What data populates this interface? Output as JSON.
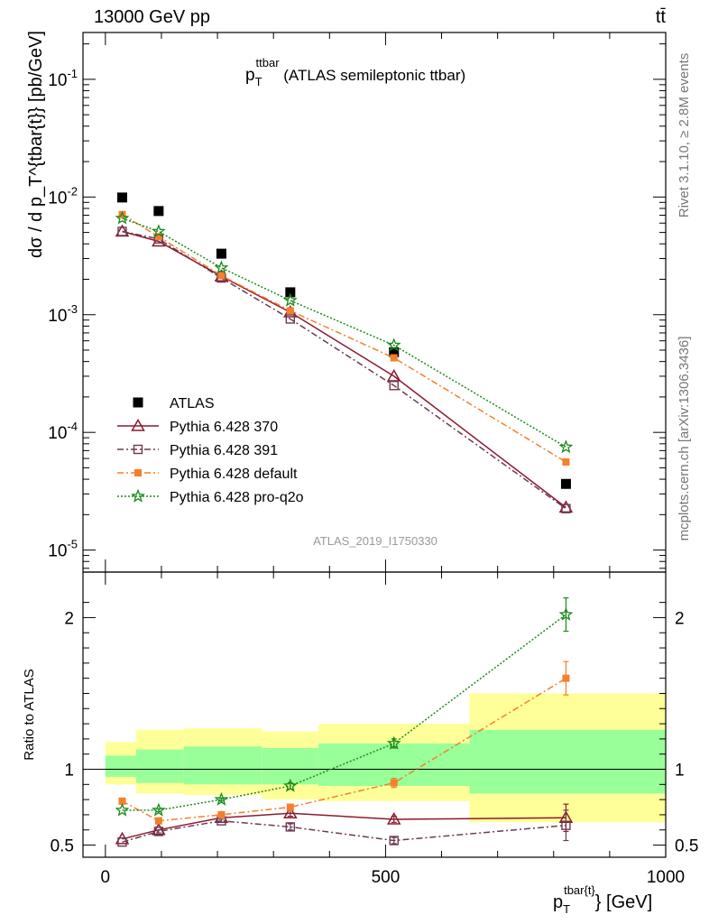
{
  "header": {
    "left": "13000 GeV pp",
    "right": "tt̄"
  },
  "side_labels": {
    "rivet": "Rivet 3.1.10, ≥ 2.8M events",
    "mcplots": "mcplots.cern.ch [arXiv:1306.3436]"
  },
  "watermark": "ATLAS_2019_I1750330",
  "chart_data": [
    {
      "type": "scatter",
      "title": "p_T^{ttbar} (ATLAS semileptonic ttbar)",
      "title_parts": {
        "p": "p",
        "sub": "T",
        "sup": "ttbar",
        "rest": " (ATLAS semileptonic ttbar)"
      },
      "ylabel": "dσ / d p_T^{tbar{t}} [pb/GeV]",
      "yscale": "log",
      "xlim": [
        -40,
        1000
      ],
      "ylim": [
        6.5e-06,
        0.25
      ],
      "y_tick_labels": [
        "10^{-5}",
        "10^{-4}",
        "10^{-3}",
        "10^{-2}",
        "10^{-1}"
      ],
      "legend_position": "lower-left",
      "x": [
        30,
        95,
        207,
        330,
        515,
        822
      ],
      "series": [
        {
          "name": "ATLAS",
          "color": "#000000",
          "marker": "square-filled",
          "line": "none",
          "values": [
            0.0099,
            0.0076,
            0.0033,
            0.00155,
            0.00048,
            3.65e-05
          ]
        },
        {
          "name": "Pythia 6.428 370",
          "color": "#8b1a2e",
          "marker": "triangle-open",
          "line": "solid",
          "values": [
            0.0051,
            0.0042,
            0.00212,
            0.00105,
            0.0003,
            2.3e-05
          ]
        },
        {
          "name": "Pythia 6.428 391",
          "color": "#6b3a52",
          "marker": "square-open",
          "line": "dashdot",
          "values": [
            0.0051,
            0.0044,
            0.00205,
            0.00092,
            0.00025,
            2.25e-05
          ]
        },
        {
          "name": "Pythia 6.428 default",
          "color": "#f57f2a",
          "marker": "square-filled-small",
          "line": "dashdot",
          "values": [
            0.0071,
            0.0046,
            0.00215,
            0.00108,
            0.00043,
            5.6e-05
          ]
        },
        {
          "name": "Pythia 6.428 pro-q2o",
          "color": "#1a8a1a",
          "marker": "star-open",
          "line": "dotted",
          "values": [
            0.0066,
            0.0051,
            0.0025,
            0.00132,
            0.00055,
            7.5e-05
          ]
        }
      ]
    },
    {
      "type": "scatter",
      "xlabel": "p_T^{tbar{t}} [GeV]",
      "xlabel_parts": {
        "p": "p",
        "sub": "T",
        "sup": "tbar{t}",
        "rest": "} [GeV]"
      },
      "ylabel": "Ratio to ATLAS",
      "xlim": [
        -40,
        1000
      ],
      "ylim": [
        0.42,
        2.3
      ],
      "x_ticks": [
        0,
        500,
        1000
      ],
      "y_ticks": [
        0.5,
        1,
        2
      ],
      "bin_edges": [
        0,
        55,
        140,
        280,
        380,
        650,
        1000
      ],
      "band_total": [
        [
          0.9,
          1.18
        ],
        [
          0.84,
          1.26
        ],
        [
          0.83,
          1.27
        ],
        [
          0.8,
          1.25
        ],
        [
          0.79,
          1.3
        ],
        [
          0.65,
          1.5
        ]
      ],
      "band_stat": [
        [
          0.95,
          1.09
        ],
        [
          0.91,
          1.13
        ],
        [
          0.9,
          1.15
        ],
        [
          0.9,
          1.14
        ],
        [
          0.89,
          1.17
        ],
        [
          0.84,
          1.26
        ]
      ],
      "x": [
        30,
        95,
        207,
        330,
        515,
        822
      ],
      "series": [
        {
          "name": "Pythia 6.428 370",
          "color": "#8b1a2e",
          "marker": "triangle-open",
          "line": "solid",
          "values": [
            0.54,
            0.6,
            0.68,
            0.71,
            0.67,
            0.68
          ],
          "errors": [
            0,
            0,
            0,
            0.02,
            0.02,
            0.09
          ]
        },
        {
          "name": "Pythia 6.428 391",
          "color": "#6b3a52",
          "marker": "square-open",
          "line": "dashdot",
          "values": [
            0.52,
            0.59,
            0.66,
            0.62,
            0.53,
            0.63
          ],
          "errors": [
            0,
            0.01,
            0.01,
            0.02,
            0.02,
            0.1
          ]
        },
        {
          "name": "Pythia 6.428 default",
          "color": "#f57f2a",
          "marker": "square-filled-small",
          "line": "dashdot",
          "values": [
            0.79,
            0.66,
            0.7,
            0.75,
            0.91,
            1.6
          ],
          "errors": [
            0,
            0.01,
            0.01,
            0.02,
            0.03,
            0.11
          ]
        },
        {
          "name": "Pythia 6.428 pro-q2o",
          "color": "#1a8a1a",
          "marker": "star-open",
          "line": "dotted",
          "values": [
            0.73,
            0.73,
            0.8,
            0.89,
            1.17,
            2.02
          ],
          "errors": [
            0,
            0.01,
            0.01,
            0.02,
            0.03,
            0.11
          ]
        }
      ]
    }
  ]
}
